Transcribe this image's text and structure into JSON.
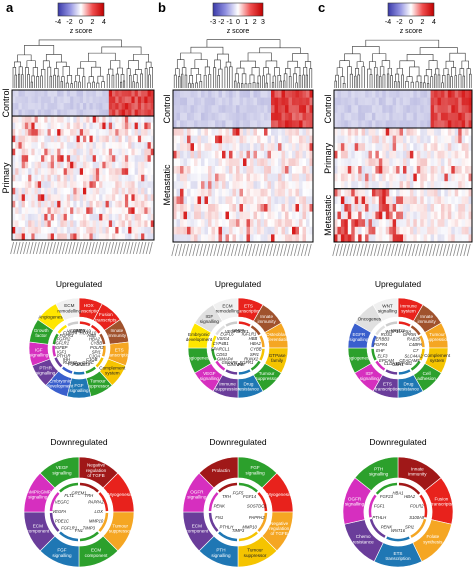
{
  "panels": [
    {
      "letter": "a",
      "scale_ticks": [
        "-4",
        "-2",
        "0",
        "2",
        "4"
      ],
      "scale_label": "z score",
      "groups": [
        {
          "label": "Control",
          "rows": 4
        },
        {
          "label": "Primary",
          "rows": 19
        }
      ],
      "upregulated": {
        "title": "Upregulated",
        "sectors": [
          {
            "label": "HOX transcription",
            "color": "#e8221c"
          },
          {
            "label": "Fusion transcripts",
            "color": "#e8221c"
          },
          {
            "label": "Innate immunity",
            "color": "#a0522d"
          },
          {
            "label": "ETS transcription",
            "color": "#f5a623"
          },
          {
            "label": "Complement system",
            "color": "#f5c400"
          },
          {
            "label": "Tumour suppressor",
            "color": "#2ca02c"
          },
          {
            "label": "FGF signalling",
            "color": "#1f77b4"
          },
          {
            "label": "Embryonic development",
            "color": "#3a5fcd"
          },
          {
            "label": "PTHR signalling",
            "color": "#6a3d9a"
          },
          {
            "label": "IGF signalling",
            "color": "#d62fbf"
          },
          {
            "label": "Growth factor",
            "color": "#2ca02c"
          },
          {
            "label": "Angiogenesis",
            "color": "#ffe600"
          },
          {
            "label": "ECM remodelling",
            "color": "#f0f0f0"
          }
        ],
        "genes": [
          "MMP9",
          "HOXA9",
          "HOXA10",
          "HBB",
          "HBA2",
          "CYBB",
          "POLR2",
          "SPI1",
          "C1QA",
          "C1QB",
          "C1QC",
          "FGF12",
          "FGF13",
          "FGF18",
          "RUNX2",
          "IHH",
          "PTH1R",
          "IGF1",
          "IGFBP",
          "IGFLR1",
          "FGFR2",
          "FGFR3",
          "FGFR4",
          "VEGFD"
        ]
      },
      "downregulated": {
        "title": "Downregulated",
        "sectors": [
          {
            "label": "Negative regulation of TGFB",
            "color": "#a01818"
          },
          {
            "label": "Myogenesis",
            "color": "#e8221c"
          },
          {
            "label": "Tumour suppressor",
            "color": "#f5a623"
          },
          {
            "label": "ECM component",
            "color": "#2ca02c"
          },
          {
            "label": "FGF signalling",
            "color": "#1f77b4"
          },
          {
            "label": "ECM component",
            "color": "#6a3d9a"
          },
          {
            "label": "cAMP/cGMP signalling",
            "color": "#d62fbf"
          },
          {
            "label": "VEGF signalling",
            "color": "#2ca02c"
          }
        ],
        "genes": [
          "GREM1",
          "TRH",
          "PAPPA2",
          "LOX",
          "MMP10",
          "TIMP3",
          "FN1",
          "FGFLR1",
          "PDE1C",
          "VEGFA",
          "VEGFC",
          "FLT1"
        ]
      }
    },
    {
      "letter": "b",
      "scale_ticks": [
        "-3",
        "-2",
        "-1",
        "0",
        "1",
        "2",
        "3"
      ],
      "scale_label": "z score",
      "groups": [
        {
          "label": "Control",
          "rows": 5
        },
        {
          "label": "Metastatic",
          "rows": 15
        }
      ],
      "upregulated": {
        "title": "Upregulated",
        "sectors": [
          {
            "label": "ETS transcription",
            "color": "#e8221c"
          },
          {
            "label": "Innate immunity",
            "color": "#a0522d"
          },
          {
            "label": "Osteoblast differentiation",
            "color": "#f5a623"
          },
          {
            "label": "GTPase family",
            "color": "#f5c400"
          },
          {
            "label": "Tumour suppressor",
            "color": "#2ca02c"
          },
          {
            "label": "Drug resistance",
            "color": "#1f77b4"
          },
          {
            "label": "Immune suppression",
            "color": "#6a3d9a"
          },
          {
            "label": "VEGF signalling",
            "color": "#d62fbf"
          },
          {
            "label": "Angiogenesis",
            "color": "#2ca02c"
          },
          {
            "label": "Embryonic development",
            "color": "#ffe600"
          },
          {
            "label": "IGF signalling",
            "color": "#e0e0e0"
          },
          {
            "label": "ECM remodelling",
            "color": "#f0f0f0"
          }
        ],
        "genes": [
          "MMP9",
          "IGF1",
          "IGFLR1",
          "HBB",
          "HBA2",
          "CYBB",
          "SPI1",
          "RUNX2",
          "FGFR1",
          "IHH",
          "GIMAP6",
          "GIMAP8",
          "GIMAP4",
          "CD53",
          "SPARCL1",
          "CYP4B1",
          "VSIG4",
          "EGFL6",
          "VEGFD"
        ]
      },
      "downregulated": {
        "title": "Downregulated",
        "sectors": [
          {
            "label": "FGF signalling",
            "color": "#2ca02c"
          },
          {
            "label": "Myogenesis",
            "color": "#e8221c"
          },
          {
            "label": "Negative regulation of TGFB",
            "color": "#f5a623"
          },
          {
            "label": "Tumour suppressor",
            "color": "#f5c400"
          },
          {
            "label": "PTH signalling",
            "color": "#1f77b4"
          },
          {
            "label": "ECM component",
            "color": "#6a3d9a"
          },
          {
            "label": "OGFR signalling",
            "color": "#d62fbf"
          },
          {
            "label": "Prolactin",
            "color": "#a01818"
          }
        ],
        "genes": [
          "FGF5",
          "FGF14",
          "SOSTDC1",
          "PAPPA2",
          "MMP10",
          "TIMP3",
          "PTHLH",
          "FN1",
          "PENK",
          "TRH"
        ]
      }
    },
    {
      "letter": "c",
      "scale_ticks": [
        "-4",
        "-2",
        "0",
        "2",
        "4"
      ],
      "scale_label": "z score",
      "groups": [
        {
          "label": "Control",
          "rows": 5
        },
        {
          "label": "Primary",
          "rows": 8
        },
        {
          "label": "Metastatic",
          "rows": 7
        }
      ],
      "upregulated": {
        "title": "Upregulated",
        "sectors": [
          {
            "label": "Immune system",
            "color": "#e8221c"
          },
          {
            "label": "Innate immunity",
            "color": "#a0522d"
          },
          {
            "label": "Tumour suppression",
            "color": "#f5a623"
          },
          {
            "label": "Complement system",
            "color": "#f5c400"
          },
          {
            "label": "Cell adhesion",
            "color": "#2ca02c"
          },
          {
            "label": "Drug resistance",
            "color": "#1f77b4"
          },
          {
            "label": "ETS transcription",
            "color": "#6a3d9a"
          },
          {
            "label": "IGF signalling",
            "color": "#d62fbf"
          },
          {
            "label": "Angiogenesis",
            "color": "#2ca02c"
          },
          {
            "label": "EGFR signalling",
            "color": "#3a5fcd"
          },
          {
            "label": "Oncogenes",
            "color": "#e0e0e0"
          },
          {
            "label": "WNT signalling",
            "color": "#f0f0f0"
          }
        ],
        "genes": [
          "WNT11",
          "NAPSA",
          "GPRIN",
          "RAB25",
          "C4BPA",
          "C7",
          "SLC44A2",
          "CEACAM5",
          "CYP4B1",
          "CDH1",
          "CLDN16",
          "EPCAM",
          "ELF3",
          "EHF",
          "FGFR4",
          "ERBB3",
          "ROS1",
          "WISP1"
        ]
      },
      "downregulated": {
        "title": "Downregulated",
        "sectors": [
          {
            "label": "Innate immunity",
            "color": "#a01818"
          },
          {
            "label": "Fusion transcripts",
            "color": "#e8221c"
          },
          {
            "label": "Folate synthesis",
            "color": "#f5a623"
          },
          {
            "label": "ETS transcription",
            "color": "#1f77b4"
          },
          {
            "label": "Chemo resistance",
            "color": "#6a3d9a"
          },
          {
            "label": "OGFR signalling",
            "color": "#d62fbf"
          },
          {
            "label": "PTH signalling",
            "color": "#2ca02c"
          }
        ],
        "genes": [
          "HBA1",
          "HBA2",
          "FOLR2",
          "S100A9",
          "SPI1",
          "WNT16",
          "PENK",
          "PTHLH",
          "FGF1",
          "FGF23"
        ]
      }
    }
  ]
}
